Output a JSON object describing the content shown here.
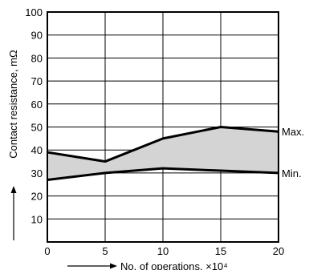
{
  "chart_data": {
    "type": "area",
    "x": [
      0,
      5,
      10,
      15,
      20
    ],
    "series": [
      {
        "name": "Max.",
        "values": [
          39,
          35,
          45,
          50,
          48
        ]
      },
      {
        "name": "Min.",
        "values": [
          27,
          30,
          32,
          31,
          30
        ]
      }
    ],
    "xlabel": "No. of operations, ×10⁴",
    "ylabel": "Contact resistance, mΩ",
    "xlim": [
      0,
      20
    ],
    "ylim": [
      0,
      100
    ],
    "xticks": [
      "0",
      "5",
      "10",
      "15",
      "20"
    ],
    "yticks": [
      "10",
      "20",
      "30",
      "40",
      "50",
      "60",
      "70",
      "80",
      "90",
      "100"
    ],
    "grid": true,
    "colors": {
      "band": "#d4d4d4",
      "line": "#000000",
      "grid": "#000000"
    }
  }
}
